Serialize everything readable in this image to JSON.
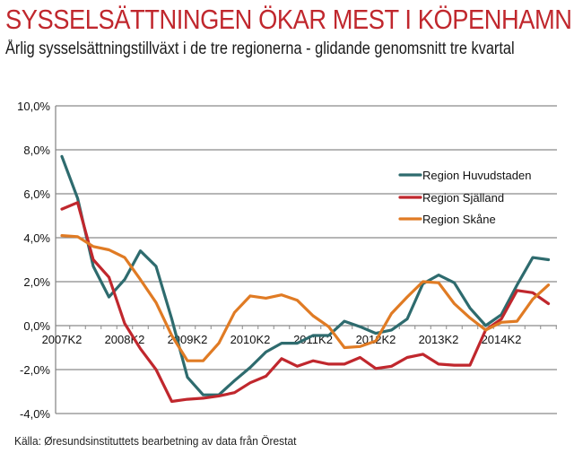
{
  "header": {
    "title": "SYSSELSÄTTNINGEN ÖKAR MEST I KÖPENHAMN",
    "subtitle": "Årlig sysselsättningstillväxt i de tre regionerna - glidande genomsnitt tre kvartal"
  },
  "footer": {
    "source": "Källa: Øresundsinstituttets bearbetning av data från Örestat"
  },
  "chart_data": {
    "type": "line",
    "title": "SYSSELSÄTTNINGEN ÖKAR MEST I KÖPENHAMN",
    "subtitle": "Årlig sysselsättningstillväxt i de tre regionerna - glidande genomsnitt tre kvartal",
    "xlabel": "",
    "ylabel": "",
    "ylim": [
      -4,
      10
    ],
    "yticks": [
      10,
      8,
      6,
      4,
      2,
      0,
      -2,
      -4
    ],
    "ytick_labels": [
      "10,0%",
      "8,0%",
      "6,0%",
      "4,0%",
      "2,0%",
      "0,0%",
      "-2,0%",
      "-4,0%"
    ],
    "grid": true,
    "legend_position": "right",
    "x": [
      "2007K2",
      "2007K3",
      "2007K4",
      "2008K1",
      "2008K2",
      "2008K3",
      "2008K4",
      "2009K1",
      "2009K2",
      "2009K3",
      "2009K4",
      "2010K1",
      "2010K2",
      "2010K3",
      "2010K4",
      "2011K1",
      "2011K2",
      "2011K3",
      "2011K4",
      "2012K1",
      "2012K2",
      "2012K3",
      "2012K4",
      "2013K1",
      "2013K2",
      "2013K3",
      "2013K4",
      "2014K1",
      "2014K2",
      "2014K3",
      "2014K4",
      "2015K1"
    ],
    "xtick_labels": [
      "2007K2",
      "2008K2",
      "2009K2",
      "2010K2",
      "2011K2",
      "2012K2",
      "2013K2",
      "2014K2"
    ],
    "series": [
      {
        "name": "Region Huvudstaden",
        "color": "#2e6b6e",
        "values": [
          7.7,
          5.8,
          2.7,
          1.3,
          2.1,
          3.4,
          2.7,
          0.3,
          -2.35,
          -3.15,
          -3.15,
          -2.5,
          -1.9,
          -1.2,
          -0.8,
          -0.8,
          -0.45,
          -0.45,
          0.2,
          -0.05,
          -0.35,
          -0.2,
          0.3,
          1.9,
          2.3,
          1.95,
          0.8,
          0.0,
          0.5,
          1.85,
          3.1,
          3.0
        ]
      },
      {
        "name": "Region Själland",
        "color": "#c0272d",
        "values": [
          5.3,
          5.6,
          3.0,
          2.2,
          0.1,
          -1.05,
          -2.0,
          -3.45,
          -3.35,
          -3.3,
          -3.2,
          -3.05,
          -2.6,
          -2.3,
          -1.5,
          -1.85,
          -1.6,
          -1.75,
          -1.75,
          -1.45,
          -1.95,
          -1.85,
          -1.45,
          -1.3,
          -1.75,
          -1.8,
          -1.8,
          -0.2,
          0.3,
          1.6,
          1.5,
          1.0
        ]
      },
      {
        "name": "Region Skåne",
        "color": "#e07b24",
        "values": [
          4.1,
          4.05,
          3.6,
          3.45,
          3.1,
          2.1,
          1.05,
          -0.45,
          -1.6,
          -1.6,
          -0.8,
          0.6,
          1.35,
          1.25,
          1.4,
          1.15,
          0.45,
          -0.05,
          -1.0,
          -0.95,
          -0.7,
          0.55,
          1.3,
          2.0,
          1.95,
          1.0,
          0.35,
          -0.2,
          0.15,
          0.2,
          1.2,
          1.85
        ]
      }
    ]
  }
}
